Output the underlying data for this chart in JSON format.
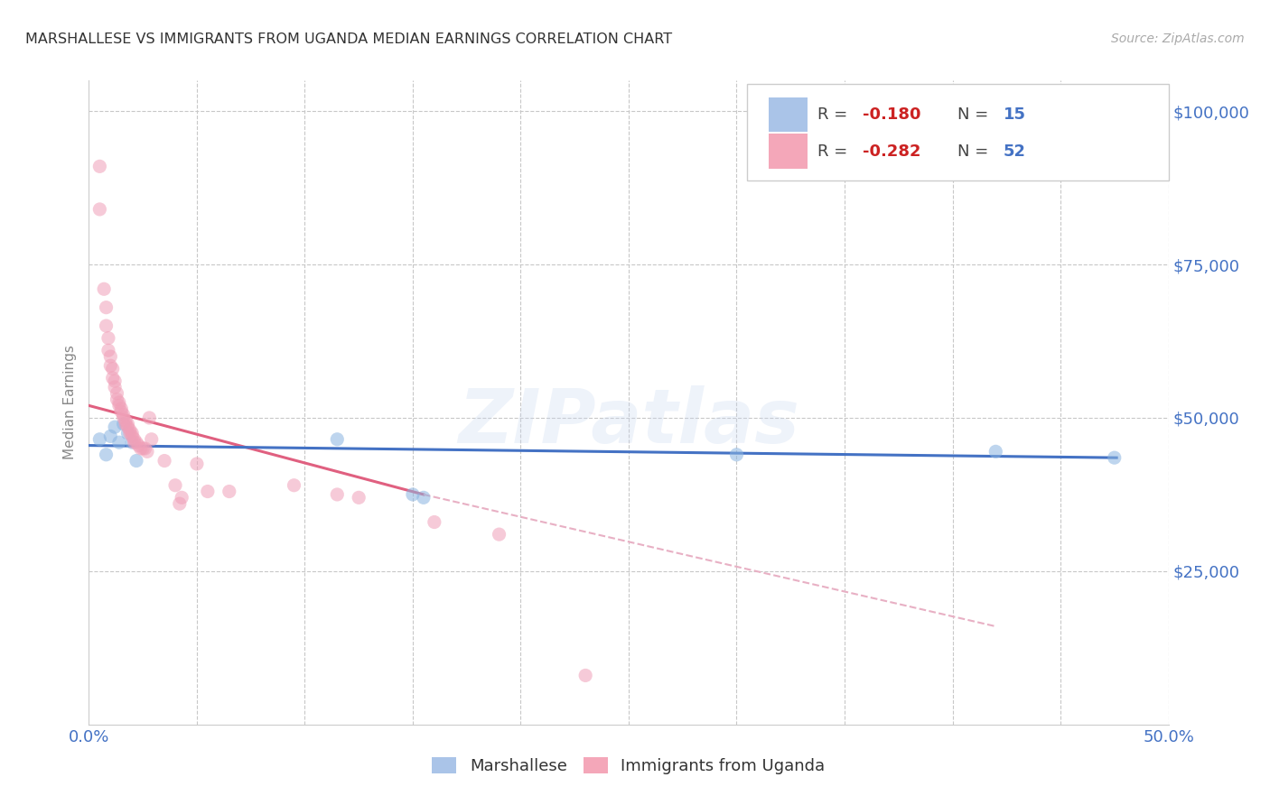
{
  "title": "MARSHALLESE VS IMMIGRANTS FROM UGANDA MEDIAN EARNINGS CORRELATION CHART",
  "source": "Source: ZipAtlas.com",
  "ylabel": "Median Earnings",
  "xlim": [
    0.0,
    0.5
  ],
  "ylim": [
    0,
    105000
  ],
  "yticks": [
    0,
    25000,
    50000,
    75000,
    100000
  ],
  "xticks": [
    0.0,
    0.05,
    0.1,
    0.15,
    0.2,
    0.25,
    0.3,
    0.35,
    0.4,
    0.45,
    0.5
  ],
  "blue_scatter": {
    "x": [
      0.005,
      0.008,
      0.01,
      0.012,
      0.014,
      0.016,
      0.018,
      0.02,
      0.022,
      0.115,
      0.15,
      0.155,
      0.3,
      0.42,
      0.475
    ],
    "y": [
      46500,
      44000,
      47000,
      48500,
      46000,
      49000,
      47500,
      46000,
      43000,
      46500,
      37500,
      37000,
      44000,
      44500,
      43500
    ],
    "color": "#8ab4e0",
    "alpha": 0.55,
    "size": 120
  },
  "pink_scatter": {
    "x": [
      0.005,
      0.005,
      0.007,
      0.008,
      0.008,
      0.009,
      0.009,
      0.01,
      0.01,
      0.011,
      0.011,
      0.012,
      0.012,
      0.013,
      0.013,
      0.014,
      0.014,
      0.015,
      0.015,
      0.016,
      0.016,
      0.017,
      0.017,
      0.018,
      0.018,
      0.019,
      0.019,
      0.02,
      0.02,
      0.021,
      0.021,
      0.022,
      0.023,
      0.024,
      0.025,
      0.026,
      0.027,
      0.028,
      0.029,
      0.035,
      0.04,
      0.042,
      0.043,
      0.05,
      0.055,
      0.065,
      0.095,
      0.115,
      0.125,
      0.16,
      0.19,
      0.23
    ],
    "y": [
      91000,
      84000,
      71000,
      68000,
      65000,
      63000,
      61000,
      60000,
      58500,
      58000,
      56500,
      56000,
      55000,
      54000,
      53000,
      52500,
      52000,
      51500,
      51000,
      50500,
      50000,
      49500,
      49000,
      49000,
      48500,
      48000,
      47500,
      47500,
      47000,
      46500,
      46000,
      46000,
      45500,
      45000,
      45000,
      45000,
      44500,
      50000,
      46500,
      43000,
      39000,
      36000,
      37000,
      42500,
      38000,
      38000,
      39000,
      37500,
      37000,
      33000,
      31000,
      8000
    ],
    "color": "#f0a0b8",
    "alpha": 0.55,
    "size": 120
  },
  "blue_line": {
    "x": [
      0.0,
      0.476
    ],
    "y": [
      45500,
      43500
    ],
    "color": "#4472c4",
    "linewidth": 2.2
  },
  "pink_line_solid": {
    "x": [
      0.0,
      0.155
    ],
    "y": [
      52000,
      37500
    ],
    "color": "#e06080",
    "linewidth": 2.2
  },
  "pink_line_dashed": {
    "x": [
      0.155,
      0.42
    ],
    "y": [
      37500,
      16000
    ],
    "color": "#e8b0c4",
    "linewidth": 1.5
  },
  "watermark": "ZIPatlas",
  "background_color": "#ffffff",
  "grid_color": "#c8c8c8",
  "title_color": "#333333",
  "tick_color": "#4472c4"
}
